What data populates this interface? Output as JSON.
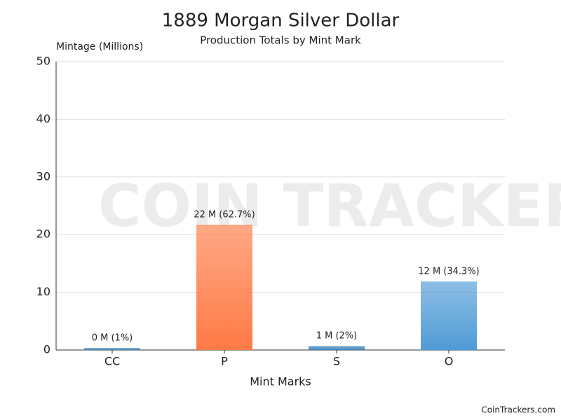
{
  "chart_data": {
    "type": "bar",
    "title": "1889 Morgan Silver Dollar",
    "subtitle": "Production Totals by Mint Mark",
    "y_axis_label": "Mintage (Millions)",
    "x_axis_label": "Mint Marks",
    "categories": [
      "CC",
      "P",
      "S",
      "O"
    ],
    "values": [
      0.35,
      21.726,
      0.7,
      11.875
    ],
    "value_labels": [
      "0 M (1%)",
      "22 M (62.7%)",
      "1 M (2%)",
      "12 M (34.3%)"
    ],
    "colors": [
      "#3f86bd",
      "#ff7a45",
      "#3f86bd",
      "#4f9bd6"
    ],
    "ylim": [
      0,
      50
    ],
    "yticks": [
      0,
      10,
      20,
      30,
      40,
      50
    ],
    "grid": true,
    "watermark": "COIN TRACKERS",
    "source": "CoinTrackers.com"
  }
}
